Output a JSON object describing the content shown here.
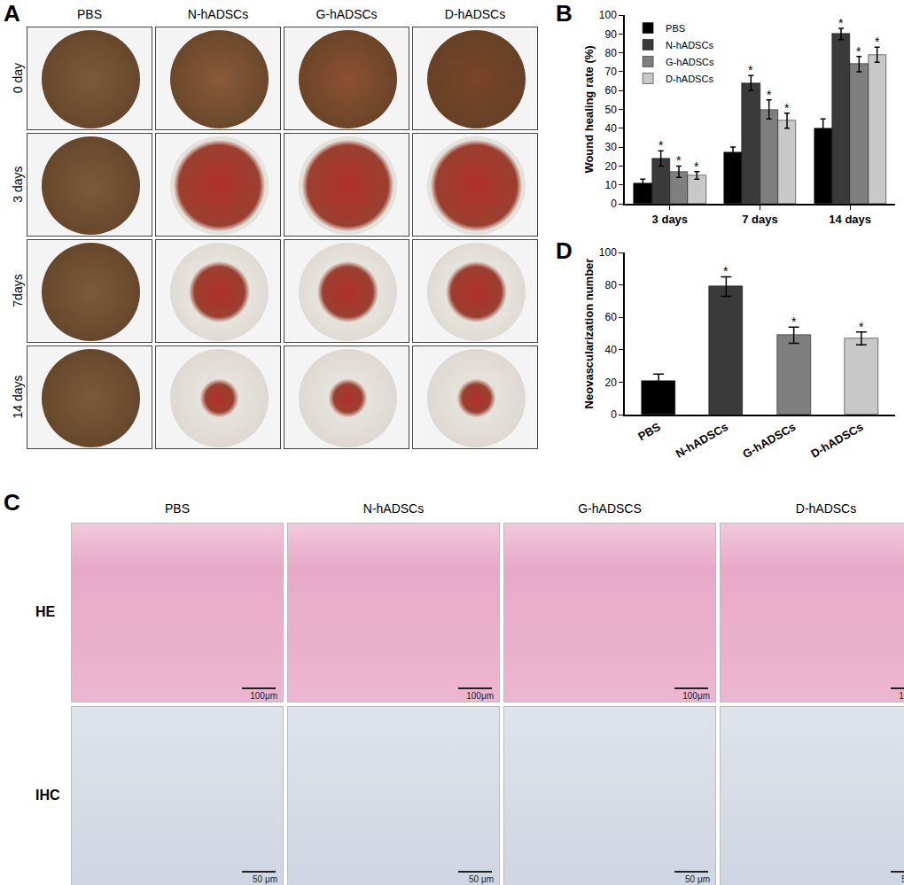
{
  "panel_A": {
    "letter": "A",
    "columns": [
      "PBS",
      "N-hADSCs",
      "G-hADSCs",
      "D-hADSCs"
    ],
    "rows": [
      "0 day",
      "3 days",
      "7days",
      "14 days"
    ]
  },
  "panel_C": {
    "letter": "C",
    "columns": [
      "PBS",
      "N-hADSCs",
      "G-hADSCS",
      "D-hADSCs"
    ],
    "rows": [
      {
        "label": "HE",
        "scale_bar": "100μm"
      },
      {
        "label": "IHC",
        "scale_bar": "50 μm"
      }
    ]
  },
  "chart_data": [
    {
      "panel": "B",
      "type": "bar",
      "categories": [
        "3 days",
        "7 days",
        "14 days"
      ],
      "y_label": "Wound healing rate (%)",
      "ylim": [
        0,
        100
      ],
      "yticks": [
        0,
        10,
        20,
        30,
        40,
        50,
        60,
        70,
        80,
        90,
        100
      ],
      "legend": "top-left",
      "grid": false,
      "series": [
        {
          "name": "PBS",
          "color": "#000000",
          "values": [
            11,
            27,
            40
          ],
          "errors": [
            2,
            3,
            5
          ]
        },
        {
          "name": "N-hADSCs",
          "color": "#3a3a3a",
          "values": [
            24,
            64,
            90
          ],
          "errors": [
            4,
            4,
            3
          ]
        },
        {
          "name": "G-hADSCs",
          "color": "#7f7f7f",
          "values": [
            17,
            50,
            74
          ],
          "errors": [
            3,
            5,
            4
          ]
        },
        {
          "name": "D-hADSCs",
          "color": "#c8c8c8",
          "values": [
            15,
            44,
            79
          ],
          "errors": [
            2,
            4,
            4
          ]
        }
      ],
      "annotations": [
        {
          "series": "N-hADSCs",
          "category": "3 days",
          "text": "*"
        },
        {
          "series": "G-hADSCs",
          "category": "3 days",
          "text": "*"
        },
        {
          "series": "D-hADSCs",
          "category": "3 days",
          "text": "*"
        },
        {
          "series": "N-hADSCs",
          "category": "7 days",
          "text": "*"
        },
        {
          "series": "G-hADSCs",
          "category": "7 days",
          "text": "*"
        },
        {
          "series": "D-hADSCs",
          "category": "7 days",
          "text": "*"
        },
        {
          "series": "N-hADSCs",
          "category": "14 days",
          "text": "*"
        },
        {
          "series": "G-hADSCs",
          "category": "14 days",
          "text": "*"
        },
        {
          "series": "D-hADSCs",
          "category": "14 days",
          "text": "*"
        }
      ]
    },
    {
      "panel": "D",
      "type": "bar",
      "categories": [
        "PBS",
        "N-hADSCs",
        "G-hADSCs",
        "D-hADSCs"
      ],
      "values": [
        21,
        79,
        49,
        47
      ],
      "errors": [
        4,
        6,
        5,
        4
      ],
      "colors": [
        "#000000",
        "#3a3a3a",
        "#7f7f7f",
        "#c8c8c8"
      ],
      "y_label": "Neovascularization number",
      "ylim": [
        0,
        100
      ],
      "yticks": [
        0,
        20,
        40,
        60,
        80,
        100
      ],
      "grid": false,
      "annotations": [
        {
          "category": "N-hADSCs",
          "text": "*"
        },
        {
          "category": "G-hADSCs",
          "text": "*"
        },
        {
          "category": "D-hADSCs",
          "text": "*"
        }
      ]
    }
  ]
}
